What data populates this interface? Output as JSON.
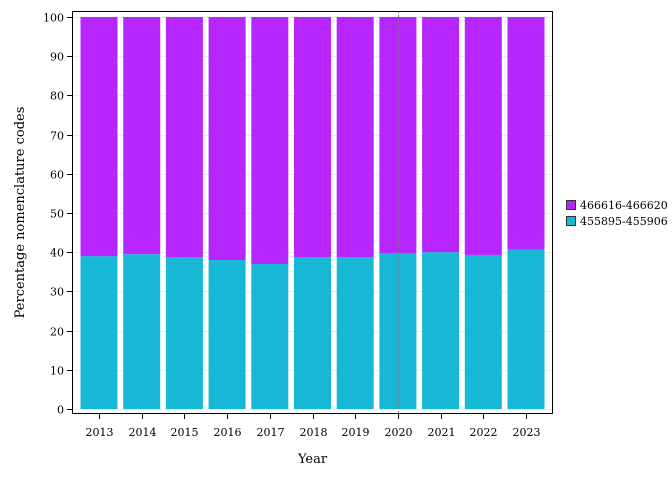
{
  "chart_data": {
    "type": "bar",
    "stacked": true,
    "categories": [
      "2013",
      "2014",
      "2015",
      "2016",
      "2017",
      "2018",
      "2019",
      "2020",
      "2021",
      "2022",
      "2023"
    ],
    "series": [
      {
        "name": "455895-455906",
        "color": "#17b8d6",
        "values": [
          39,
          39.5,
          38.7,
          38,
          37,
          38.7,
          38.7,
          39.8,
          40,
          39.3,
          40.7
        ]
      },
      {
        "name": "466616-466620",
        "color": "#b726ff",
        "values": [
          61,
          60.5,
          61.3,
          62,
          63,
          61.3,
          61.3,
          60.2,
          60,
          60.7,
          59.3
        ]
      }
    ],
    "xlabel": "Year",
    "ylabel": "Percentage nomenclature codes",
    "ylim": [
      0,
      100
    ],
    "yticks": [
      "0",
      "10",
      "20",
      "30",
      "40",
      "50",
      "60",
      "70",
      "80",
      "90",
      "100"
    ],
    "reference_line_x": "2020",
    "grid": true,
    "legend_position": "right",
    "legend_order": [
      "466616-466620",
      "455895-455906"
    ]
  }
}
